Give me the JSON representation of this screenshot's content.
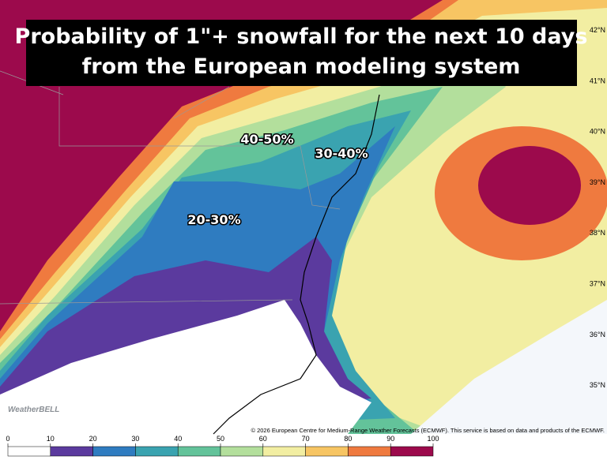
{
  "title_lines": [
    "Probability of 1\"+ snowfall for the next 10 days",
    "from the European modeling system"
  ],
  "annotations": [
    "40-50%",
    "30-40%",
    "20-30%"
  ],
  "latitude_labels": [
    "42°N",
    "41°N",
    "40°N",
    "39°N",
    "38°N",
    "37°N",
    "36°N",
    "35°N"
  ],
  "credit": "© 2026 European Centre for Medium-Range Weather Forecasts (ECMWF). This service is based on data and products of the ECMWF.",
  "logo": "WeatherBELL",
  "colorbar": {
    "ticks": [
      0,
      10,
      20,
      30,
      40,
      50,
      60,
      70,
      80,
      90,
      100
    ],
    "colors": [
      "#ffffff",
      "#5b3a9e",
      "#2f7cc0",
      "#3aa3b0",
      "#63c39a",
      "#b3df9c",
      "#f2eea2",
      "#f7c563",
      "#ef7a3f",
      "#9c0a4c"
    ]
  }
}
